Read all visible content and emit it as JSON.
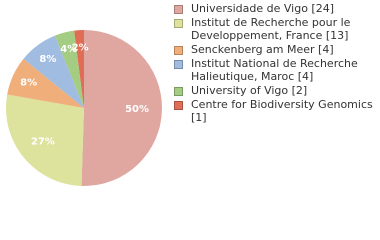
{
  "chart_data": {
    "type": "pie",
    "categories": [
      "Universidade de Vigo [24]",
      "Institut de Recherche pour le Developpement, France [13]",
      "Senckenberg am Meer [4]",
      "Institut National de Recherche Halieutique, Maroc [4]",
      "University of Vigo [2]",
      "Centre for Biodiversity Genomics [1]"
    ],
    "values": [
      50,
      27,
      8,
      8,
      4,
      2
    ],
    "value_labels": [
      "50%",
      "27%",
      "8%",
      "8%",
      "4%",
      "2%"
    ],
    "colors": [
      "#e0a7a0",
      "#dde29d",
      "#f0ae7a",
      "#a0bce0",
      "#a4cc83",
      "#e06e56"
    ]
  }
}
